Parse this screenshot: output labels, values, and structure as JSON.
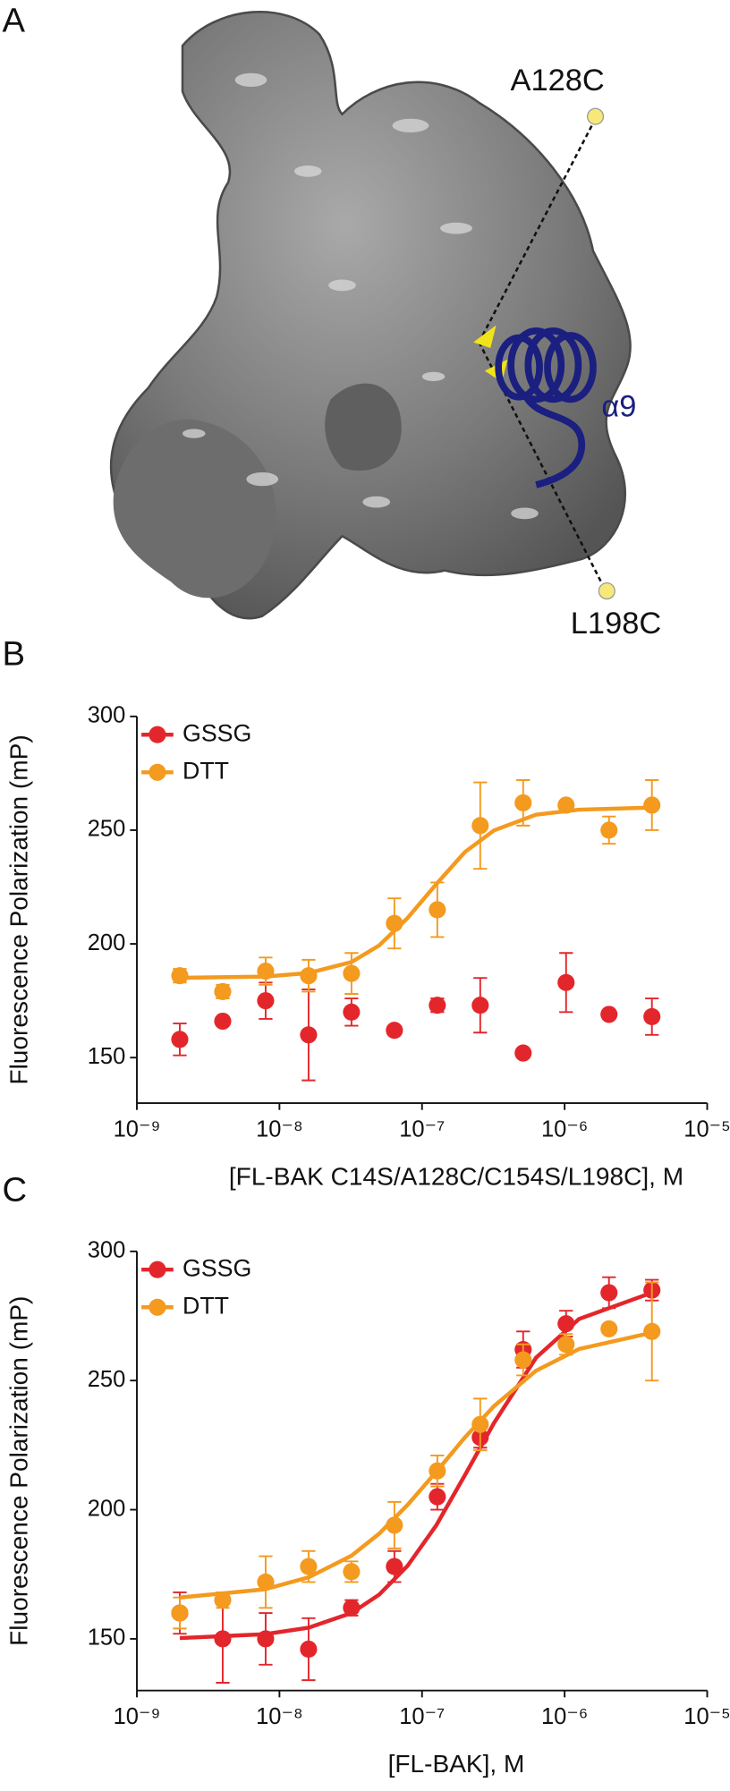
{
  "structure": {
    "panel_label": "A",
    "labels": [
      "A128C",
      "α9",
      "L198C"
    ]
  },
  "chart_data": [
    {
      "type": "scatter",
      "panel_label": "B",
      "y_label": "Fluorescence Polarization (mP)",
      "x_label": "[FL-BAK C14S/A128C/C154S/L198C], M",
      "x_scale": "log",
      "xlim": [
        1e-09,
        1e-05
      ],
      "xticks": [
        {
          "value": 1e-09,
          "label": "10⁻⁹"
        },
        {
          "value": 1e-08,
          "label": "10⁻⁸"
        },
        {
          "value": 1e-07,
          "label": "10⁻⁷"
        },
        {
          "value": 1e-06,
          "label": "10⁻⁶"
        },
        {
          "value": 1e-05,
          "label": "10⁻⁵"
        }
      ],
      "ylim": [
        130,
        300
      ],
      "yticks": [
        150,
        200,
        250,
        300
      ],
      "legend": "top-left",
      "x": [
        2e-09,
        4e-09,
        8e-09,
        1.6e-08,
        3.2e-08,
        6.4e-08,
        1.28e-07,
        2.56e-07,
        5.12e-07,
        1.024e-06,
        2.048e-06,
        4.096e-06
      ],
      "series": [
        {
          "name": "GSSG",
          "color": "#e3262b",
          "values": [
            158,
            166,
            175,
            160,
            170,
            162,
            173,
            173,
            152,
            183,
            169,
            168
          ],
          "errors": [
            7,
            0,
            8,
            20,
            6,
            0,
            3,
            12,
            0,
            13,
            0,
            8
          ]
        },
        {
          "name": "DTT",
          "color": "#f39a1f",
          "values": [
            186,
            179,
            188,
            186,
            187,
            209,
            215,
            252,
            262,
            261,
            250,
            261
          ],
          "errors": [
            3,
            3,
            6,
            7,
            9,
            11,
            12,
            19,
            10,
            0,
            6,
            11
          ],
          "fit": {
            "x": [
              2e-09,
              7.9e-09,
              1.6e-08,
              3.2e-08,
              5e-08,
              7.9e-08,
              1.26e-07,
              2e-07,
              3.2e-07,
              6.3e-07,
              1.26e-06,
              4e-06
            ],
            "values": [
              185.1,
              185.6,
              187.2,
              192.0,
              199.3,
              211.3,
              226.3,
              240.4,
              249.9,
              256.8,
              259.0,
              259.9
            ]
          }
        }
      ]
    },
    {
      "type": "scatter",
      "panel_label": "C",
      "y_label": "Fluorescence Polarization (mP)",
      "x_label": "[FL-BAK], M",
      "x_scale": "log",
      "xlim": [
        1e-09,
        1e-05
      ],
      "xticks": [
        {
          "value": 1e-09,
          "label": "10⁻⁹"
        },
        {
          "value": 1e-08,
          "label": "10⁻⁸"
        },
        {
          "value": 1e-07,
          "label": "10⁻⁷"
        },
        {
          "value": 1e-06,
          "label": "10⁻⁶"
        },
        {
          "value": 1e-05,
          "label": "10⁻⁵"
        }
      ],
      "ylim": [
        130,
        300
      ],
      "yticks": [
        150,
        200,
        250,
        300
      ],
      "legend": "top-left",
      "x": [
        2e-09,
        4e-09,
        8e-09,
        1.6e-08,
        3.2e-08,
        6.4e-08,
        1.28e-07,
        2.56e-07,
        5.12e-07,
        1.024e-06,
        2.048e-06,
        4.096e-06
      ],
      "series": [
        {
          "name": "GSSG",
          "color": "#e3262b",
          "values": [
            160,
            150,
            150,
            146,
            162,
            178,
            205,
            228,
            262,
            272,
            284,
            285
          ],
          "errors": [
            8,
            17,
            10,
            12,
            3,
            6,
            5,
            4,
            7,
            5,
            6,
            4
          ],
          "fit": {
            "x": [
              2e-09,
              7.9e-09,
              1.6e-08,
              3.2e-08,
              5e-08,
              7.9e-08,
              1.26e-07,
              2e-07,
              3.2e-07,
              6.3e-07,
              1.26e-06,
              4e-06
            ],
            "values": [
              150.3,
              151.8,
              154.3,
              160.0,
              167.1,
              178.2,
              194.0,
              213.4,
              233.6,
              258.8,
              273.8,
              283.8
            ]
          }
        },
        {
          "name": "DTT",
          "color": "#f39a1f",
          "values": [
            160,
            165,
            172,
            178,
            176,
            194,
            215,
            233,
            258,
            264,
            270,
            269
          ],
          "errors": [
            6,
            3,
            10,
            6,
            4,
            9,
            6,
            10,
            6,
            4,
            0,
            19
          ],
          "fit": {
            "x": [
              2e-09,
              7.9e-09,
              1.6e-08,
              3.2e-08,
              5e-08,
              7.9e-08,
              1.26e-07,
              2e-07,
              3.2e-07,
              6.3e-07,
              1.26e-06,
              4e-06
            ],
            "values": [
              166.0,
              169.2,
              173.8,
              182.2,
              190.7,
              201.8,
              214.7,
              228.0,
              240.1,
              253.8,
              262.2,
              268.4
            ]
          }
        }
      ]
    }
  ]
}
